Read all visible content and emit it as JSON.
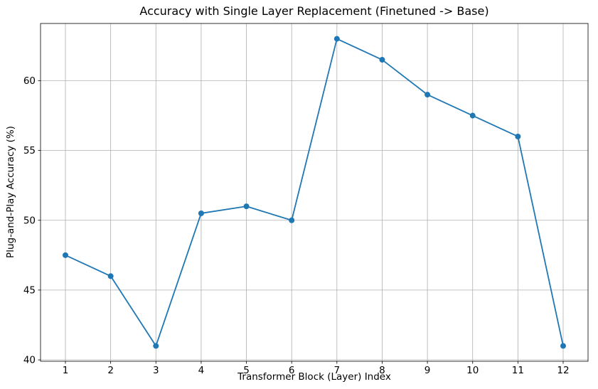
{
  "chart_data": {
    "type": "line",
    "title": "Accuracy with Single Layer Replacement (Finetuned -> Base)",
    "xlabel": "Transformer Block (Layer) Index",
    "ylabel": "Plug-and-Play Accuracy (%)",
    "x": [
      1,
      2,
      3,
      4,
      5,
      6,
      7,
      8,
      9,
      10,
      11,
      12
    ],
    "values": [
      47.5,
      46,
      41,
      50.5,
      51,
      50,
      63,
      61.5,
      59,
      57.5,
      56,
      41
    ],
    "xticks": [
      1,
      2,
      3,
      4,
      5,
      6,
      7,
      8,
      9,
      10,
      11,
      12
    ],
    "yticks": [
      40,
      45,
      50,
      55,
      60
    ],
    "xlim": [
      0.45,
      12.55
    ],
    "ylim": [
      39.9,
      64.1
    ],
    "grid": true,
    "legend": "none",
    "line_color": "#1f77b4",
    "grid_color": "#b0b0b0",
    "marker": "circle",
    "background": "#ffffff"
  }
}
